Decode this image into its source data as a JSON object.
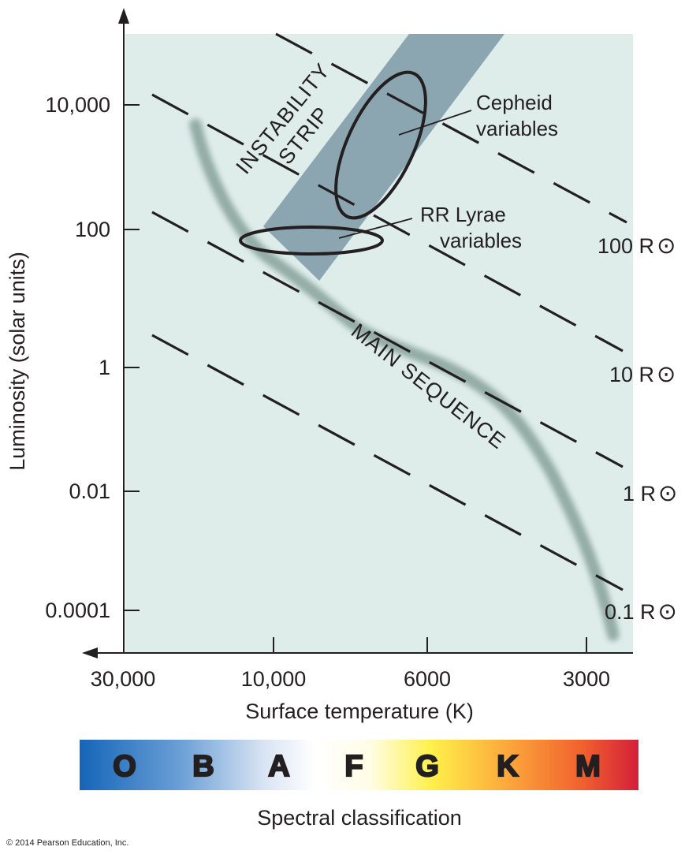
{
  "diagram": {
    "y_axis_title": "Luminosity (solar units)",
    "x_axis_title": "Surface temperature (K)",
    "y_ticks": [
      "10,000",
      "100",
      "1",
      "0.01",
      "0.0001"
    ],
    "x_ticks": [
      "30,000",
      "10,000",
      "6000",
      "3000"
    ],
    "radius_lines": [
      {
        "value": "100 R",
        "symbol": "⊙"
      },
      {
        "value": "10 R",
        "symbol": "⊙"
      },
      {
        "value": "1 R",
        "symbol": "⊙"
      },
      {
        "value": "0.1 R",
        "symbol": "⊙"
      }
    ],
    "instability_strip_label_line1": "INSTABILITY",
    "instability_strip_label_line2": "STRIP",
    "main_sequence_label": "MAIN SEQUENCE",
    "cepheid_label_line1": "Cepheid",
    "cepheid_label_line2": "variables",
    "rr_lyrae_label_line1": "RR Lyrae",
    "rr_lyrae_label_line2": "variables",
    "spectral_classes": [
      "O",
      "B",
      "A",
      "F",
      "G",
      "K",
      "M"
    ],
    "spectral_title": "Spectral classification",
    "copyright": "© 2014 Pearson Education, Inc.",
    "colors": {
      "plot_background": "#deecea",
      "instability_strip": "#8ba6b0",
      "main_sequence": "#9db5ae",
      "spectral_O": "#1565b8",
      "spectral_A": "#ffffff",
      "spectral_G": "#fff04a",
      "spectral_M": "#d4203a"
    }
  }
}
